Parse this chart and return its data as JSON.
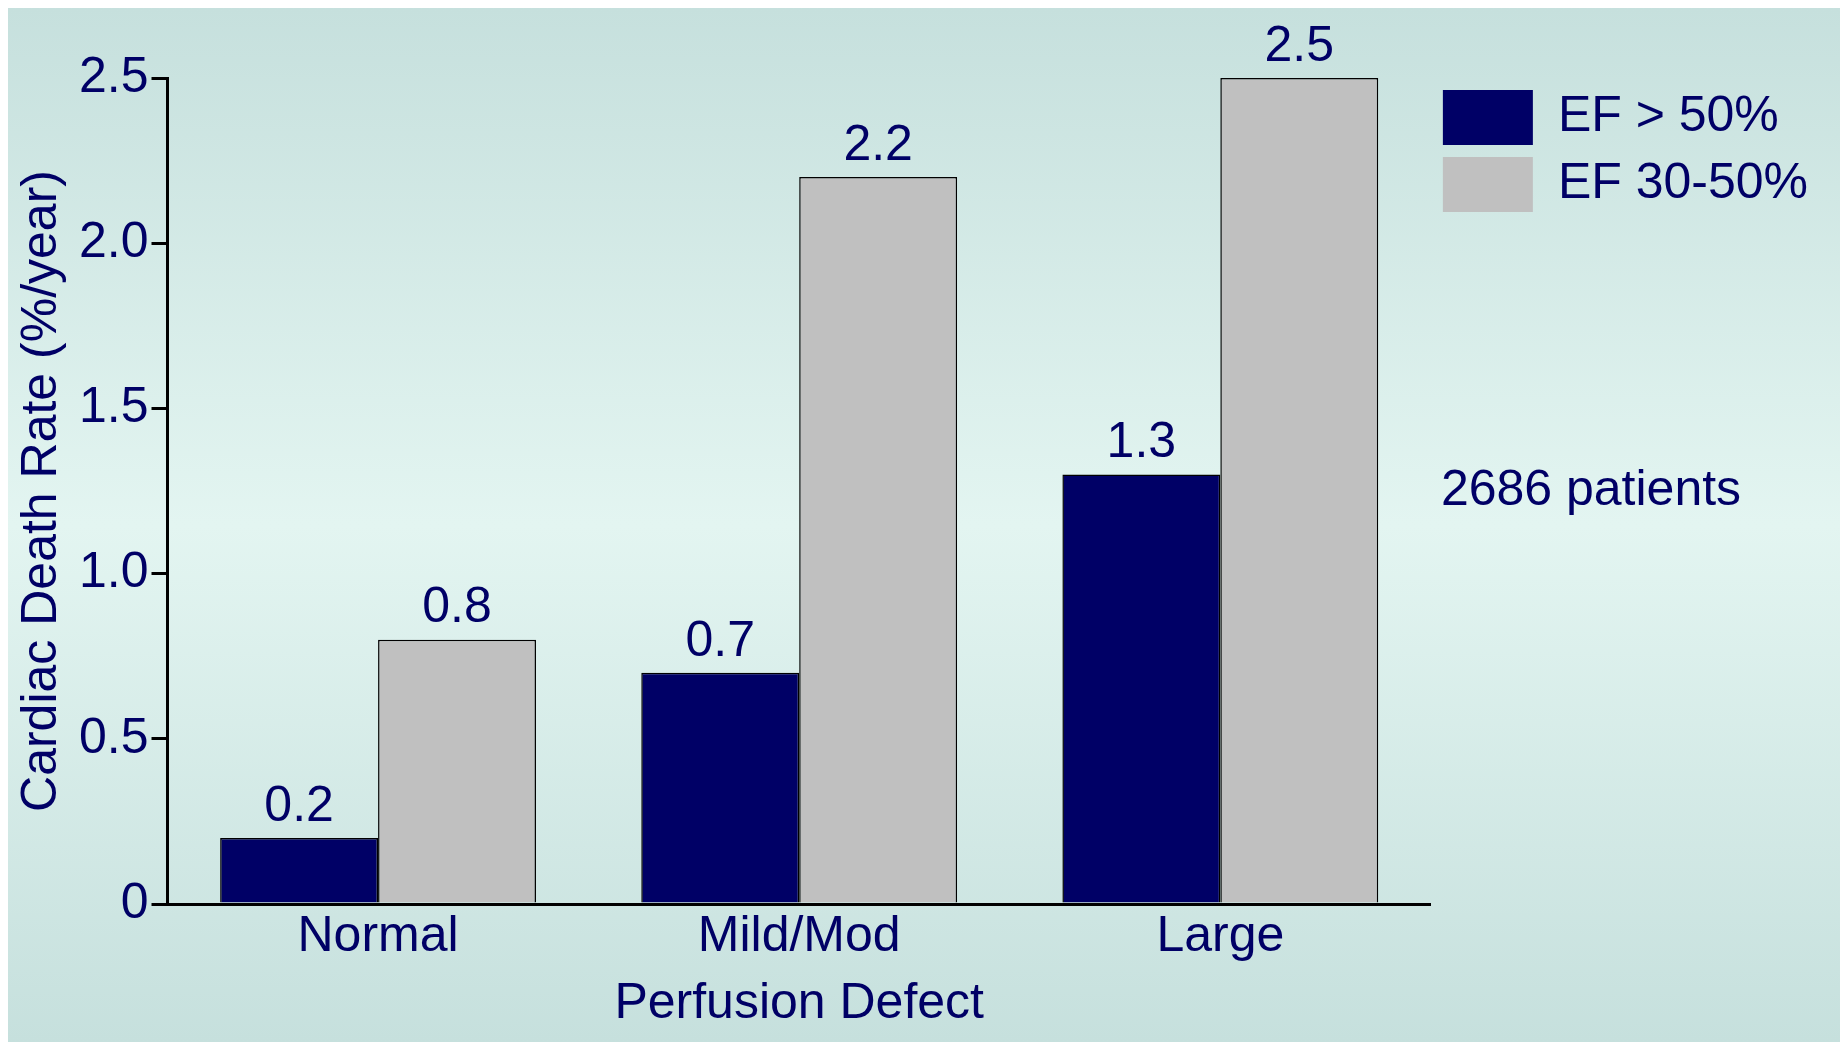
{
  "chart_data": {
    "type": "bar",
    "xlabel": "Perfusion Defect",
    "ylabel": "Cardiac Death Rate (%/year)",
    "categories": [
      "Normal",
      "Mild/Mod",
      "Large"
    ],
    "series": [
      {
        "name": "EF > 50%",
        "color": "#000066",
        "values": [
          0.2,
          0.7,
          1.3
        ]
      },
      {
        "name": "EF 30-50%",
        "color": "#c0c0c0",
        "values": [
          0.8,
          2.2,
          2.5
        ]
      }
    ],
    "ylim": [
      0,
      2.5
    ],
    "yticks": [
      0,
      0.5,
      {
        "value": 1,
        "label": "1.0"
      },
      1.5,
      {
        "value": 2,
        "label": "2.0"
      },
      2.5
    ],
    "data_labels": true,
    "grid": false,
    "legend": "top right",
    "annotations": [
      "2686 patients"
    ]
  }
}
